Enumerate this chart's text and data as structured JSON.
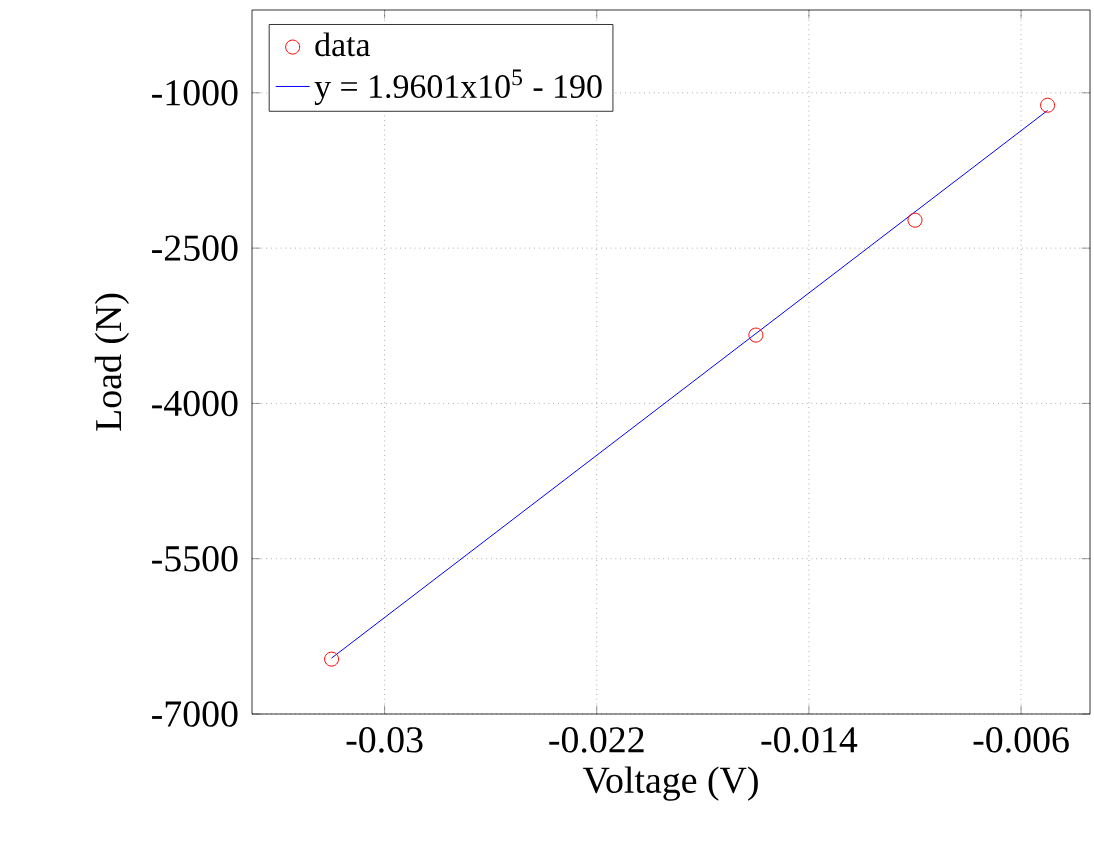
{
  "chart_data": {
    "type": "scatter",
    "xlabel": "Voltage (V)",
    "ylabel": "Load (N)",
    "xlim": [
      -0.035,
      -0.0034
    ],
    "ylim": [
      -7000,
      -200
    ],
    "xticks": [
      -0.03,
      -0.022,
      -0.014,
      -0.006
    ],
    "yticks": [
      -7000,
      -5500,
      -4000,
      -2500,
      -1000
    ],
    "grid": true,
    "legend": "top left",
    "series": [
      {
        "name": "data",
        "color": "#ff0000",
        "marker": "circle",
        "x": [
          -0.032,
          -0.016,
          -0.01,
          -0.005
        ],
        "values": [
          -6470,
          -3340,
          -2230,
          -1120
        ]
      },
      {
        "name": "y = 1.9601x10$^{5}$ - 190",
        "type": "line",
        "color": "#0000ff",
        "marker": "none",
        "line_style": "solid",
        "x": [
          -0.032,
          -0.005
        ],
        "values": [
          -6460,
          -1170
        ]
      }
    ]
  }
}
